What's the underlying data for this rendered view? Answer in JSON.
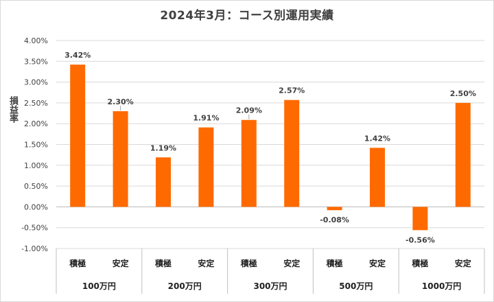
{
  "chart_data": {
    "type": "bar",
    "title": "2024年3月：コース別運用実績",
    "ylabel": "損益率",
    "ylim": [
      -1.0,
      4.0
    ],
    "yticks": [
      "4.00%",
      "3.50%",
      "3.00%",
      "2.50%",
      "2.00%",
      "1.50%",
      "1.00%",
      "0.50%",
      "0.00%",
      "-0.50%",
      "-1.00%"
    ],
    "groups": [
      {
        "name": "100万円",
        "bars": [
          {
            "label": "積極",
            "value": 3.42,
            "text": "3.42%"
          },
          {
            "label": "安定",
            "value": 2.3,
            "text": "2.30%"
          }
        ]
      },
      {
        "name": "200万円",
        "bars": [
          {
            "label": "積極",
            "value": 1.19,
            "text": "1.19%"
          },
          {
            "label": "安定",
            "value": 1.91,
            "text": "1.91%"
          }
        ]
      },
      {
        "name": "300万円",
        "bars": [
          {
            "label": "積極",
            "value": 2.09,
            "text": "2.09%"
          },
          {
            "label": "安定",
            "value": 2.57,
            "text": "2.57%"
          }
        ]
      },
      {
        "name": "500万円",
        "bars": [
          {
            "label": "積極",
            "value": -0.08,
            "text": "-0.08%"
          },
          {
            "label": "安定",
            "value": 1.42,
            "text": "1.42%"
          }
        ]
      },
      {
        "name": "1000万円",
        "bars": [
          {
            "label": "積極",
            "value": -0.56,
            "text": "-0.56%"
          },
          {
            "label": "安定",
            "value": 2.5,
            "text": "2.50%"
          }
        ]
      }
    ],
    "grid": true,
    "colors": {
      "bar": "#ff6a00",
      "grid": "#d9d9d9",
      "axis": "#bfbfbf"
    }
  }
}
